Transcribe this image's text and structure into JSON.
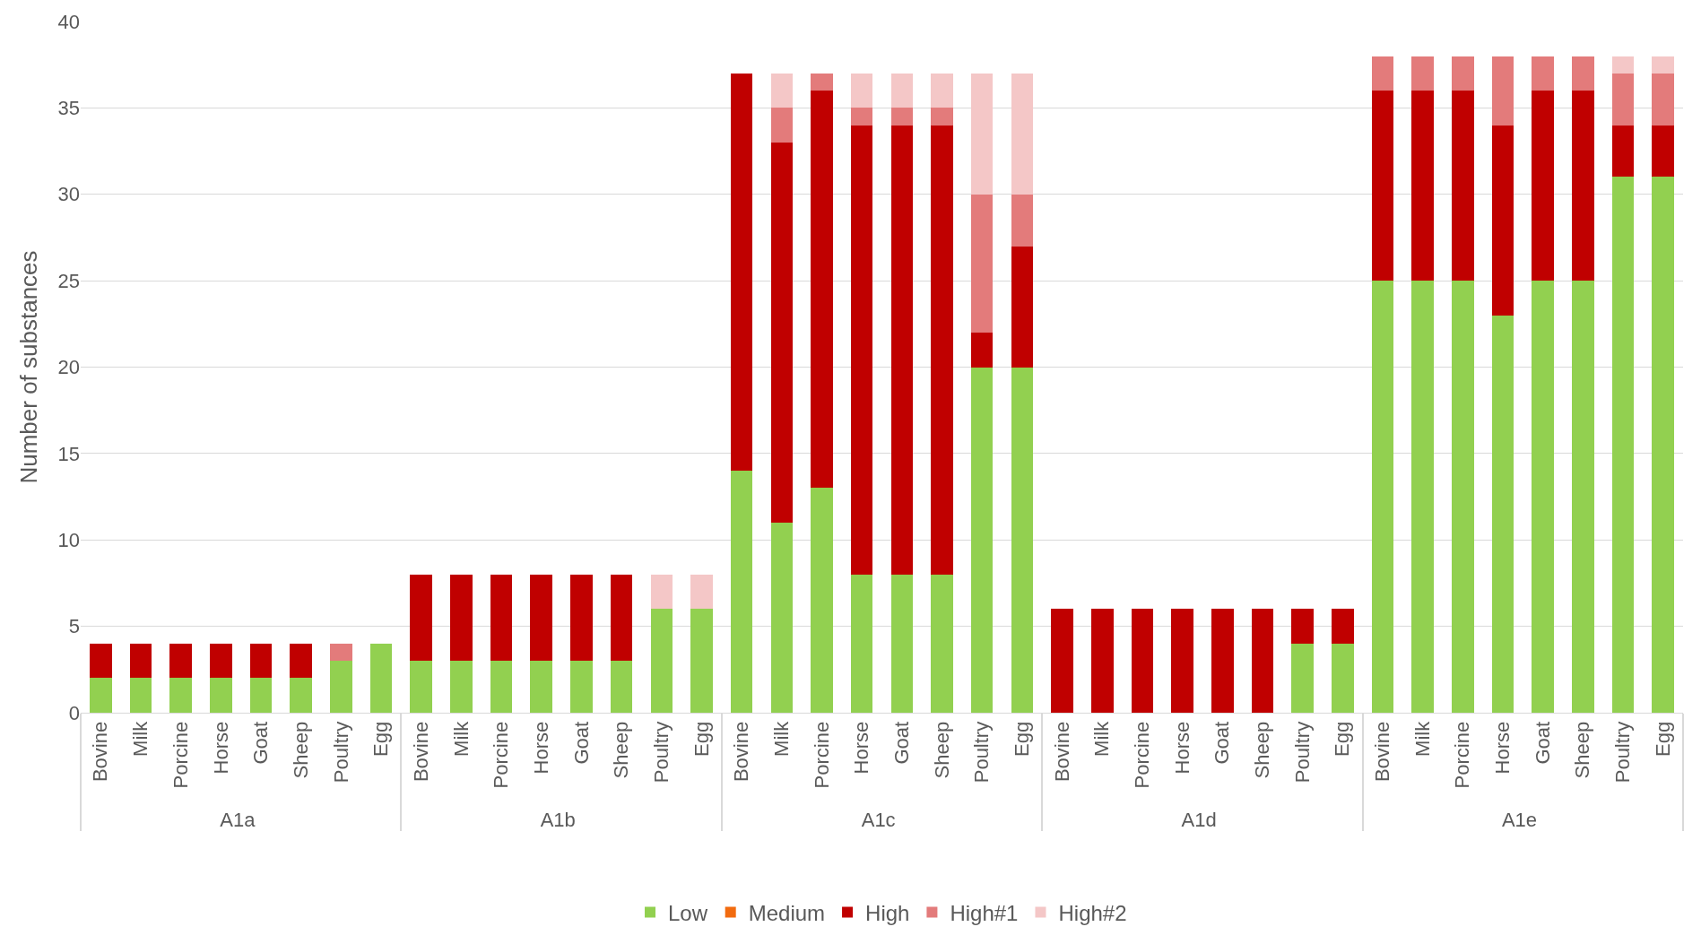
{
  "chart_data": {
    "type": "bar",
    "stacked": true,
    "ylabel": "Number of substances",
    "categories": [
      "Bovine",
      "Milk",
      "Porcine",
      "Horse",
      "Goat",
      "Sheep",
      "Poultry",
      "Egg",
      "Bovine",
      "Milk",
      "Porcine",
      "Horse",
      "Goat",
      "Sheep",
      "Poultry",
      "Egg",
      "Bovine",
      "Milk",
      "Porcine",
      "Horse",
      "Goat",
      "Sheep",
      "Poultry",
      "Egg",
      "Bovine",
      "Milk",
      "Porcine",
      "Horse",
      "Goat",
      "Sheep",
      "Poultry",
      "Egg",
      "Bovine",
      "Milk",
      "Porcine",
      "Horse",
      "Goat",
      "Sheep",
      "Poultry",
      "Egg"
    ],
    "annotations": [
      "A1a",
      "A1b",
      "A1c",
      "A1d",
      "A1e"
    ],
    "series": [
      {
        "name": "Low",
        "color": "#92d050",
        "values": [
          2,
          2,
          2,
          2,
          2,
          2,
          3,
          4,
          3,
          3,
          3,
          3,
          3,
          3,
          6,
          6,
          14,
          11,
          13,
          8,
          8,
          8,
          20,
          20,
          0,
          0,
          0,
          0,
          0,
          0,
          4,
          4,
          25,
          25,
          25,
          23,
          25,
          25,
          31,
          31
        ]
      },
      {
        "name": "Medium",
        "color": "#f26b0f",
        "values": [
          0,
          0,
          0,
          0,
          0,
          0,
          0,
          0,
          0,
          0,
          0,
          0,
          0,
          0,
          0,
          0,
          0,
          0,
          0,
          0,
          0,
          0,
          0,
          0,
          0,
          0,
          0,
          0,
          0,
          0,
          0,
          0,
          0,
          0,
          0,
          0,
          0,
          0,
          0,
          0
        ]
      },
      {
        "name": "High",
        "color": "#c00000",
        "values": [
          2,
          2,
          2,
          2,
          2,
          2,
          0,
          0,
          5,
          5,
          5,
          5,
          5,
          5,
          0,
          0,
          23,
          22,
          23,
          26,
          26,
          26,
          2,
          7,
          6,
          6,
          6,
          6,
          6,
          6,
          2,
          2,
          11,
          11,
          11,
          11,
          11,
          11,
          3,
          3
        ]
      },
      {
        "name": "High#1",
        "color": "#e37b7b",
        "values": [
          0,
          0,
          0,
          0,
          0,
          0,
          1,
          0,
          0,
          0,
          0,
          0,
          0,
          0,
          0,
          0,
          0,
          2,
          1,
          1,
          1,
          1,
          8,
          3,
          0,
          0,
          0,
          0,
          0,
          0,
          0,
          0,
          2,
          2,
          2,
          4,
          2,
          2,
          3,
          3
        ]
      },
      {
        "name": "High#2",
        "color": "#f4c7c7",
        "values": [
          0,
          0,
          0,
          0,
          0,
          0,
          0,
          0,
          0,
          0,
          0,
          0,
          0,
          0,
          2,
          2,
          0,
          2,
          0,
          2,
          2,
          2,
          7,
          7,
          0,
          0,
          0,
          0,
          0,
          0,
          0,
          0,
          0,
          0,
          0,
          0,
          0,
          0,
          1,
          1
        ]
      }
    ],
    "ylim": [
      0,
      40
    ],
    "yticks": [
      0,
      5,
      10,
      15,
      20,
      25,
      30,
      35,
      40
    ],
    "grid": "y",
    "legend": "bottom"
  }
}
